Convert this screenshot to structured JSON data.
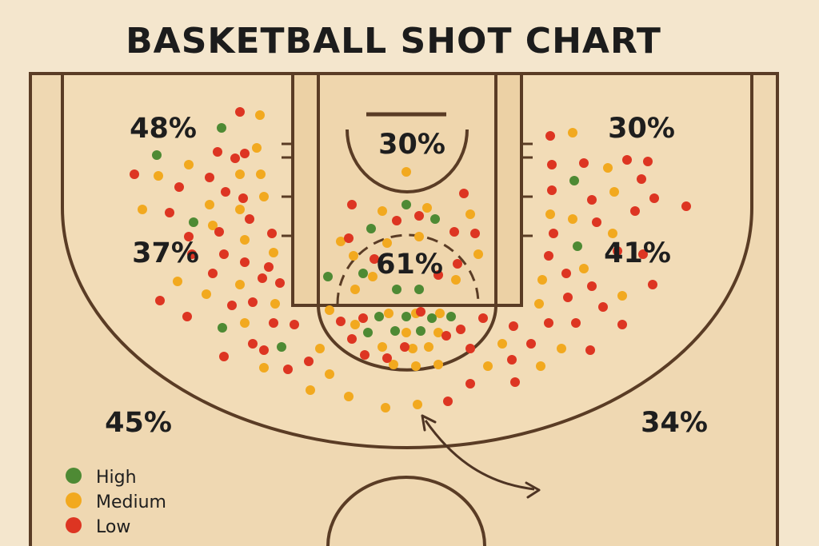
{
  "chart_data": {
    "type": "scatter",
    "title": "BASKETBALL SHOT CHART",
    "legend": [
      {
        "label": "High",
        "color": "#4e8a34"
      },
      {
        "label": "Medium",
        "color": "#f2a91f"
      },
      {
        "label": "Low",
        "color": "#dd3522"
      }
    ],
    "zones": [
      {
        "label": "48%",
        "position": "left-corner-top"
      },
      {
        "label": "30%",
        "position": "right-corner-top"
      },
      {
        "label": "30%",
        "position": "paint-top"
      },
      {
        "label": "37%",
        "position": "left-wing"
      },
      {
        "label": "61%",
        "position": "paint"
      },
      {
        "label": "41%",
        "position": "right-wing"
      },
      {
        "label": "45%",
        "position": "left-deep"
      },
      {
        "label": "34%",
        "position": "right-deep"
      }
    ],
    "shots": {
      "high": [
        [
          277,
          160
        ],
        [
          196,
          194
        ],
        [
          242,
          278
        ],
        [
          718,
          226
        ],
        [
          722,
          308
        ],
        [
          508,
          256
        ],
        [
          464,
          286
        ],
        [
          544,
          274
        ],
        [
          410,
          346
        ],
        [
          454,
          342
        ],
        [
          496,
          362
        ],
        [
          524,
          362
        ],
        [
          474,
          396
        ],
        [
          508,
          396
        ],
        [
          540,
          398
        ],
        [
          564,
          396
        ],
        [
          460,
          416
        ],
        [
          494,
          414
        ],
        [
          526,
          414
        ],
        [
          278,
          410
        ],
        [
          352,
          434
        ]
      ],
      "medium": [
        [
          325,
          144
        ],
        [
          321,
          185
        ],
        [
          198,
          220
        ],
        [
          236,
          206
        ],
        [
          300,
          218
        ],
        [
          326,
          218
        ],
        [
          178,
          262
        ],
        [
          262,
          256
        ],
        [
          300,
          262
        ],
        [
          330,
          246
        ],
        [
          266,
          282
        ],
        [
          306,
          300
        ],
        [
          222,
          352
        ],
        [
          300,
          356
        ],
        [
          258,
          368
        ],
        [
          342,
          316
        ],
        [
          344,
          380
        ],
        [
          306,
          404
        ],
        [
          330,
          460
        ],
        [
          388,
          488
        ],
        [
          436,
          496
        ],
        [
          482,
          510
        ],
        [
          522,
          506
        ],
        [
          508,
          215
        ],
        [
          478,
          264
        ],
        [
          534,
          260
        ],
        [
          484,
          304
        ],
        [
          524,
          296
        ],
        [
          442,
          320
        ],
        [
          466,
          346
        ],
        [
          444,
          362
        ],
        [
          412,
          388
        ],
        [
          486,
          392
        ],
        [
          520,
          392
        ],
        [
          550,
          392
        ],
        [
          444,
          406
        ],
        [
          508,
          416
        ],
        [
          548,
          416
        ],
        [
          478,
          434
        ],
        [
          516,
          436
        ],
        [
          536,
          434
        ],
        [
          492,
          456
        ],
        [
          520,
          458
        ],
        [
          548,
          456
        ],
        [
          426,
          302
        ],
        [
          588,
          268
        ],
        [
          598,
          318
        ],
        [
          570,
          350
        ],
        [
          400,
          436
        ],
        [
          412,
          468
        ],
        [
          628,
          430
        ],
        [
          610,
          458
        ],
        [
          676,
          458
        ],
        [
          702,
          436
        ],
        [
          716,
          166
        ],
        [
          760,
          210
        ],
        [
          768,
          240
        ],
        [
          688,
          268
        ],
        [
          716,
          274
        ],
        [
          766,
          292
        ],
        [
          730,
          336
        ],
        [
          678,
          350
        ],
        [
          778,
          370
        ],
        [
          674,
          380
        ]
      ],
      "low": [
        [
          300,
          140
        ],
        [
          272,
          190
        ],
        [
          294,
          198
        ],
        [
          168,
          218
        ],
        [
          224,
          234
        ],
        [
          262,
          222
        ],
        [
          306,
          192
        ],
        [
          282,
          240
        ],
        [
          304,
          248
        ],
        [
          212,
          266
        ],
        [
          312,
          274
        ],
        [
          274,
          290
        ],
        [
          236,
          296
        ],
        [
          340,
          292
        ],
        [
          280,
          318
        ],
        [
          240,
          318
        ],
        [
          306,
          328
        ],
        [
          336,
          334
        ],
        [
          266,
          342
        ],
        [
          350,
          354
        ],
        [
          328,
          348
        ],
        [
          290,
          382
        ],
        [
          200,
          376
        ],
        [
          234,
          396
        ],
        [
          316,
          378
        ],
        [
          316,
          430
        ],
        [
          342,
          404
        ],
        [
          368,
          406
        ],
        [
          280,
          446
        ],
        [
          330,
          438
        ],
        [
          360,
          462
        ],
        [
          386,
          452
        ],
        [
          440,
          256
        ],
        [
          496,
          276
        ],
        [
          524,
          270
        ],
        [
          568,
          290
        ],
        [
          580,
          242
        ],
        [
          594,
          292
        ],
        [
          436,
          298
        ],
        [
          468,
          324
        ],
        [
          572,
          330
        ],
        [
          548,
          344
        ],
        [
          426,
          402
        ],
        [
          454,
          398
        ],
        [
          526,
          390
        ],
        [
          576,
          412
        ],
        [
          440,
          424
        ],
        [
          456,
          444
        ],
        [
          506,
          434
        ],
        [
          558,
          420
        ],
        [
          484,
          448
        ],
        [
          588,
          436
        ],
        [
          560,
          502
        ],
        [
          588,
          480
        ],
        [
          604,
          398
        ],
        [
          642,
          408
        ],
        [
          664,
          430
        ],
        [
          640,
          450
        ],
        [
          644,
          478
        ],
        [
          688,
          170
        ],
        [
          690,
          206
        ],
        [
          730,
          204
        ],
        [
          784,
          200
        ],
        [
          810,
          202
        ],
        [
          690,
          238
        ],
        [
          740,
          250
        ],
        [
          802,
          224
        ],
        [
          818,
          248
        ],
        [
          858,
          258
        ],
        [
          794,
          264
        ],
        [
          746,
          278
        ],
        [
          692,
          292
        ],
        [
          686,
          320
        ],
        [
          772,
          314
        ],
        [
          804,
          318
        ],
        [
          708,
          342
        ],
        [
          740,
          358
        ],
        [
          816,
          356
        ],
        [
          710,
          372
        ],
        [
          754,
          384
        ],
        [
          686,
          404
        ],
        [
          720,
          404
        ],
        [
          778,
          406
        ],
        [
          738,
          438
        ]
      ]
    }
  }
}
